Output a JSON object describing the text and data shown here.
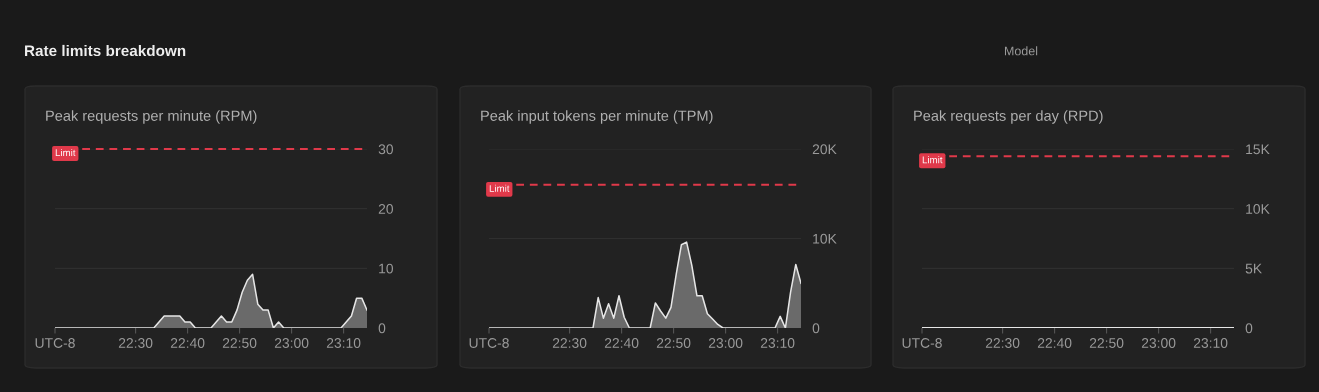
{
  "chart_data": [
    {
      "type": "area",
      "title": "Peak requests per minute (RPM)",
      "annotations": [
        "Rate limits breakdown",
        "Model"
      ],
      "x": [
        22.2417,
        22.2583,
        22.275,
        22.2917,
        22.3083,
        22.325,
        22.3417,
        22.3583,
        22.375,
        22.3917,
        22.4083,
        22.425,
        22.4417,
        22.4583,
        22.475,
        22.4917,
        22.5083,
        22.525,
        22.5417,
        22.5583,
        22.575,
        22.5917,
        22.6083,
        22.625,
        22.6417,
        22.6583,
        22.675,
        22.6917,
        22.7083,
        22.725,
        22.7417,
        22.7583,
        22.775,
        22.7917,
        22.8083,
        22.825,
        22.8417,
        22.8583,
        22.875,
        22.8917,
        22.9083,
        22.925,
        22.9417,
        22.9583,
        22.975,
        22.9917,
        23.0083,
        23.025,
        23.0417,
        23.0583,
        23.075,
        23.0917,
        23.1083,
        23.125,
        23.1417,
        23.1583,
        23.175,
        23.1917,
        23.2083,
        23.225,
        23.2417
      ],
      "series": [
        {
          "color": "#e6e6e6",
          "values": [
            0,
            0,
            0,
            0,
            0,
            0,
            0,
            0,
            0,
            0,
            0,
            0,
            0,
            0,
            0,
            0,
            0,
            0,
            0,
            0,
            1,
            2,
            2,
            2,
            2,
            1,
            1,
            0,
            0,
            0,
            0,
            1,
            2,
            1,
            1,
            3,
            6,
            8,
            9,
            4,
            3,
            3,
            0,
            1,
            0,
            0,
            0,
            0,
            0,
            0,
            0,
            0,
            0,
            0,
            0,
            0,
            1,
            2,
            5,
            5,
            3
          ]
        }
      ],
      "xlim": [
        22.2417,
        23.2417
      ],
      "xticks": [
        {
          "value": 22.2417,
          "label": "UTC-8"
        },
        {
          "value": 22.5,
          "label": "22:30"
        },
        {
          "value": 22.6667,
          "label": "22:40"
        },
        {
          "value": 22.8333,
          "label": "22:50"
        },
        {
          "value": 23.0,
          "label": "23:00"
        },
        {
          "value": 23.1667,
          "label": "23:10"
        }
      ],
      "ylim": [
        0,
        30
      ],
      "yticks": [
        0,
        10,
        20,
        30
      ],
      "ref_lines": [
        {
          "axis": "y",
          "value": 30,
          "label": "Limit",
          "color": "#e0394a",
          "line_style": "dashed"
        }
      ],
      "grid": "y"
    },
    {
      "type": "area",
      "title": "Peak input tokens per minute (TPM)",
      "x": [
        22.2417,
        22.2583,
        22.275,
        22.2917,
        22.3083,
        22.325,
        22.3417,
        22.3583,
        22.375,
        22.3917,
        22.4083,
        22.425,
        22.4417,
        22.4583,
        22.475,
        22.4917,
        22.5083,
        22.525,
        22.5417,
        22.5583,
        22.575,
        22.5917,
        22.6083,
        22.625,
        22.6417,
        22.6583,
        22.675,
        22.6917,
        22.7083,
        22.725,
        22.7417,
        22.7583,
        22.775,
        22.7917,
        22.8083,
        22.825,
        22.8417,
        22.8583,
        22.875,
        22.8917,
        22.9083,
        22.925,
        22.9417,
        22.9583,
        22.975,
        22.9917,
        23.0083,
        23.025,
        23.0417,
        23.0583,
        23.075,
        23.0917,
        23.1083,
        23.125,
        23.1417,
        23.1583,
        23.175,
        23.1917,
        23.2083,
        23.225,
        23.2417
      ],
      "series": [
        {
          "color": "#e6e6e6",
          "values": [
            0,
            0,
            0,
            0,
            0,
            0,
            0,
            0,
            0,
            0,
            0,
            0,
            0,
            0,
            0,
            0,
            0,
            0,
            0,
            0,
            0,
            3400,
            1100,
            2700,
            1100,
            3600,
            1200,
            0,
            0,
            0,
            0,
            0,
            2800,
            1900,
            1100,
            2300,
            6000,
            9300,
            9600,
            7000,
            3600,
            3600,
            1600,
            1000,
            400,
            0,
            0,
            0,
            0,
            0,
            0,
            0,
            0,
            0,
            0,
            0,
            1300,
            0,
            4000,
            7100,
            5000
          ]
        }
      ],
      "xlim": [
        22.2417,
        23.2417
      ],
      "xticks": [
        {
          "value": 22.2417,
          "label": "UTC-8"
        },
        {
          "value": 22.5,
          "label": "22:30"
        },
        {
          "value": 22.6667,
          "label": "22:40"
        },
        {
          "value": 22.8333,
          "label": "22:50"
        },
        {
          "value": 23.0,
          "label": "23:00"
        },
        {
          "value": 23.1667,
          "label": "23:10"
        }
      ],
      "ylim": [
        0,
        20000
      ],
      "yticks": [
        0,
        {
          "value": 10000,
          "label": "10K"
        },
        {
          "value": 20000,
          "label": "20K"
        }
      ],
      "ref_lines": [
        {
          "axis": "y",
          "value": 16000,
          "label": "Limit",
          "color": "#e0394a",
          "line_style": "dashed"
        }
      ],
      "grid": "y"
    },
    {
      "type": "area",
      "title": "Peak requests per day (RPD)",
      "x": [
        22.2417,
        22.2583,
        22.275,
        22.2917,
        22.3083,
        22.325,
        22.3417,
        22.3583,
        22.375,
        22.3917,
        22.4083,
        22.425,
        22.4417,
        22.4583,
        22.475,
        22.4917,
        22.5083,
        22.525,
        22.5417,
        22.5583,
        22.575,
        22.5917,
        22.6083,
        22.625,
        22.6417,
        22.6583,
        22.675,
        22.6917,
        22.7083,
        22.725,
        22.7417,
        22.7583,
        22.775,
        22.7917,
        22.8083,
        22.825,
        22.8417,
        22.8583,
        22.875,
        22.8917,
        22.9083,
        22.925,
        22.9417,
        22.9583,
        22.975,
        22.9917,
        23.0083,
        23.025,
        23.0417,
        23.0583,
        23.075,
        23.0917,
        23.1083,
        23.125,
        23.1417,
        23.1583,
        23.175,
        23.1917,
        23.2083,
        23.225,
        23.2417
      ],
      "series": [
        {
          "type": "line",
          "color": "#e6e6e6",
          "values": [
            0,
            0,
            0,
            0,
            0,
            0,
            0,
            0,
            0,
            0,
            0,
            0,
            0,
            0,
            0,
            0,
            0,
            0,
            0,
            0,
            0,
            0,
            0,
            0,
            0,
            0,
            0,
            0,
            0,
            0,
            0,
            0,
            0,
            0,
            0,
            0,
            0,
            0,
            0,
            0,
            0,
            0,
            0,
            0,
            0,
            0,
            0,
            0,
            0,
            0,
            0,
            0,
            0,
            0,
            0,
            0,
            0,
            0,
            0,
            0,
            0
          ]
        }
      ],
      "xlim": [
        22.2417,
        23.2417
      ],
      "xticks": [
        {
          "value": 22.2417,
          "label": "UTC-8"
        },
        {
          "value": 22.5,
          "label": "22:30"
        },
        {
          "value": 22.6667,
          "label": "22:40"
        },
        {
          "value": 22.8333,
          "label": "22:50"
        },
        {
          "value": 23.0,
          "label": "23:00"
        },
        {
          "value": 23.1667,
          "label": "23:10"
        }
      ],
      "ylim": [
        0,
        15000
      ],
      "yticks": [
        0,
        {
          "value": 5000,
          "label": "5K"
        },
        {
          "value": 10000,
          "label": "10K"
        },
        {
          "value": 15000,
          "label": "15K"
        }
      ],
      "ref_lines": [
        {
          "axis": "y",
          "value": 14400,
          "label": "Limit",
          "color": "#e0394a",
          "line_style": "dashed"
        }
      ],
      "grid": "y"
    }
  ]
}
